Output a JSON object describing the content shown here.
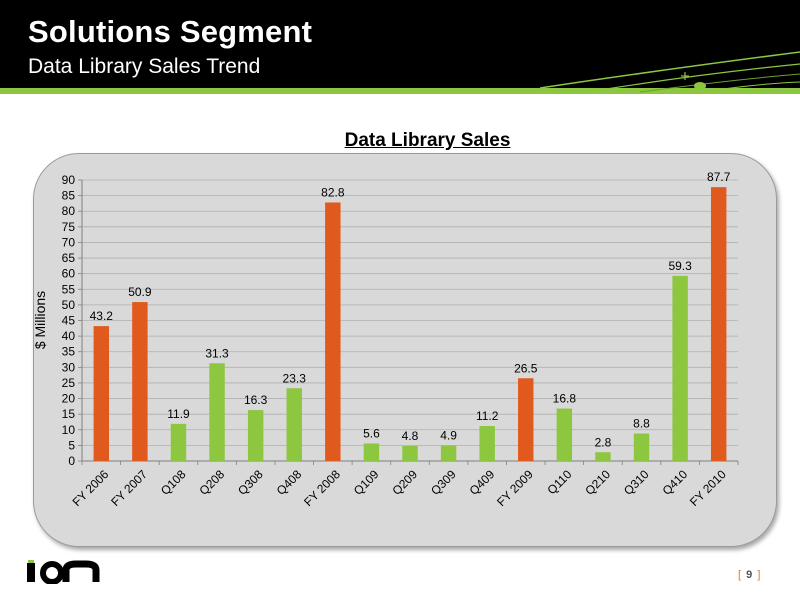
{
  "header": {
    "title": "Solutions Segment",
    "subtitle": "Data Library Sales Trend"
  },
  "page": {
    "open": "[",
    "number": "9",
    "close": "]"
  },
  "colors": {
    "header_bg": "#000000",
    "accent_green": "#8dc63f",
    "bar_orange": "#e05a1e",
    "bar_green": "#8dc63f",
    "panel_bg": "#d9d9d9"
  },
  "logo": {
    "icon": "ion-logo-icon"
  },
  "chart_data": {
    "type": "bar",
    "title": "Data Library Sales",
    "xlabel": "",
    "ylabel": "$ Millions",
    "ylim": [
      0,
      90
    ],
    "ytick_step": 5,
    "grid": true,
    "legend": "none",
    "categories": [
      "FY 2006",
      "FY 2007",
      "Q108",
      "Q208",
      "Q308",
      "Q408",
      "FY 2008",
      "Q109",
      "Q209",
      "Q309",
      "Q409",
      "FY 2009",
      "Q110",
      "Q210",
      "Q310",
      "Q410",
      "FY 2010"
    ],
    "values": [
      43.2,
      50.9,
      11.9,
      31.3,
      16.3,
      23.3,
      82.8,
      5.6,
      4.8,
      4.9,
      11.2,
      26.5,
      16.8,
      2.8,
      8.8,
      59.3,
      87.7
    ],
    "labels": [
      "43.2",
      "50.9",
      "11.9",
      "31.3",
      "16.3",
      "23.3",
      "82.8",
      "5.6",
      "4.8",
      "4.9",
      "11.2",
      "26.5",
      "16.8",
      "2.8",
      "8.8",
      "59.3",
      "87.7"
    ],
    "bar_kind": [
      "fy",
      "fy",
      "q",
      "q",
      "q",
      "q",
      "fy",
      "q",
      "q",
      "q",
      "q",
      "fy",
      "q",
      "q",
      "q",
      "q",
      "fy"
    ]
  }
}
